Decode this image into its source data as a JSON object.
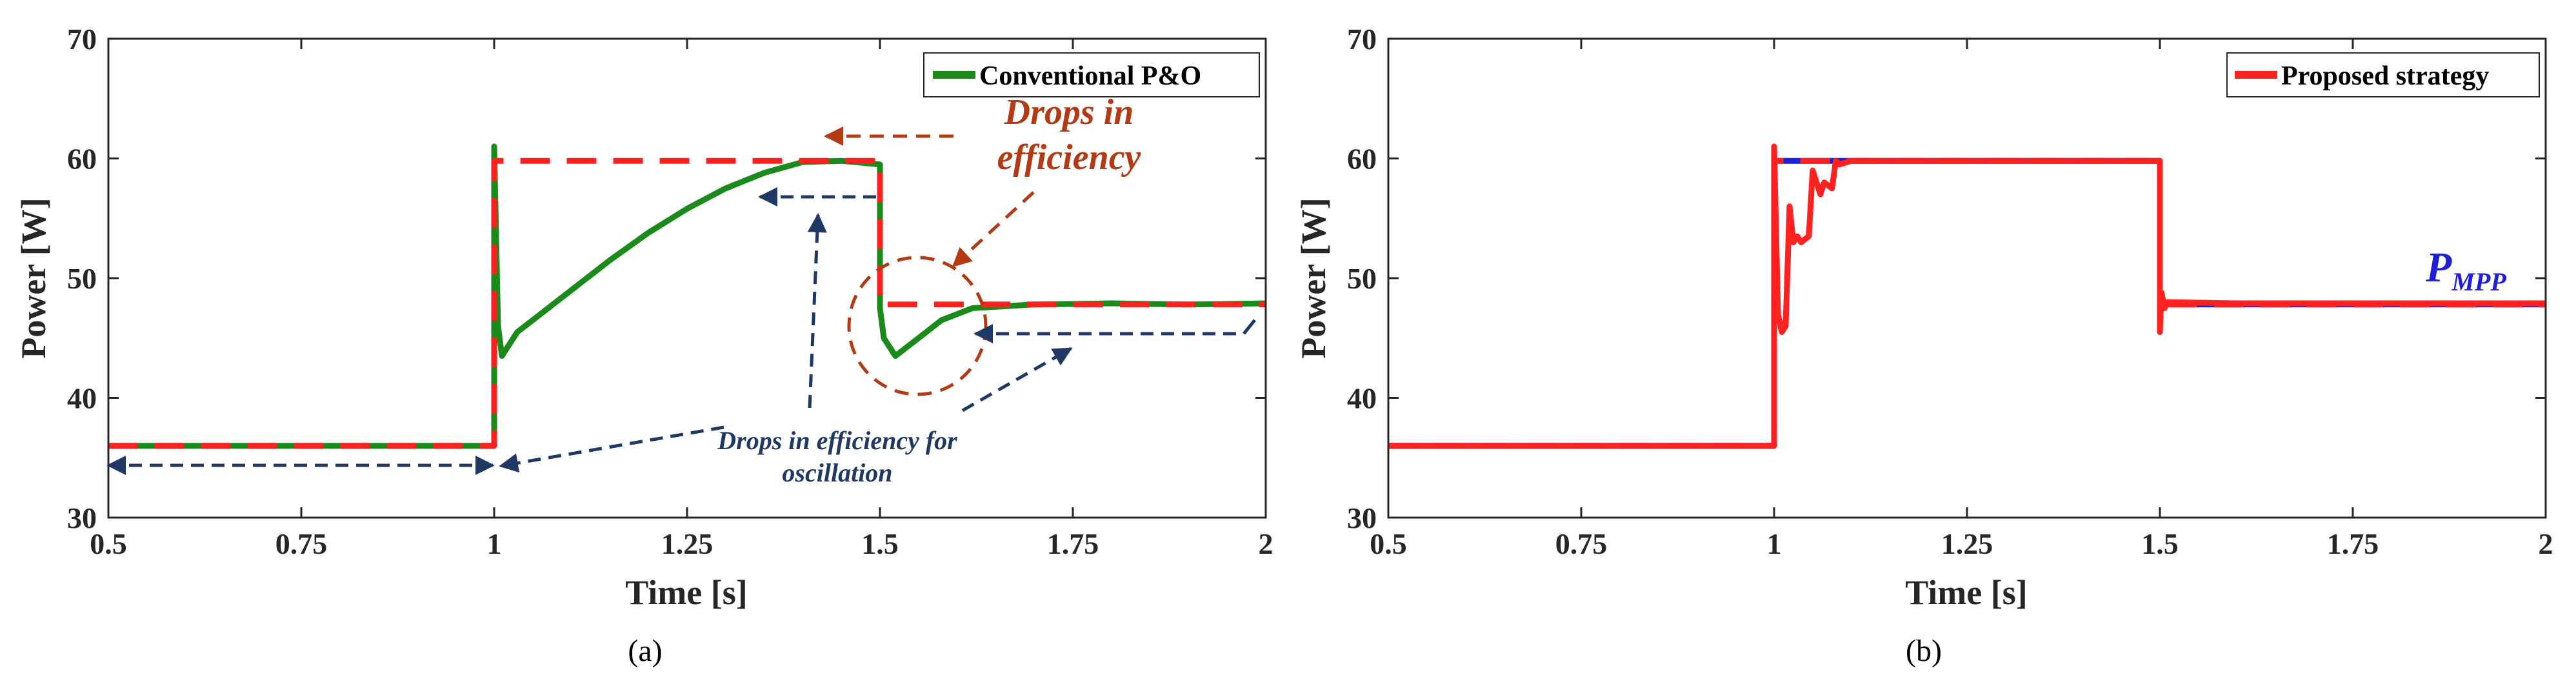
{
  "colors": {
    "conventional": "#1a8a1a",
    "proposed": "#ff2020",
    "reference_red": "#ff2020",
    "reference_blue": "#1f1fe0",
    "annotation_red": "#b23a14",
    "annotation_blue": "#1f3864"
  },
  "chart_data": [
    {
      "type": "line",
      "caption": "(a)",
      "xlabel": "Time [s]",
      "ylabel": "Power [W]",
      "xlim": [
        0.5,
        2
      ],
      "ylim": [
        30,
        70
      ],
      "xticks": [
        0.5,
        0.75,
        1,
        1.25,
        1.5,
        1.75,
        2
      ],
      "xtick_labels": [
        "0.5",
        "0.75",
        "1",
        "1.25",
        "1.5",
        "1.75",
        "2"
      ],
      "yticks": [
        30,
        40,
        50,
        60,
        70
      ],
      "ytick_labels": [
        "30",
        "40",
        "50",
        "60",
        "70"
      ],
      "legend": [
        "Conventional P&O"
      ],
      "legend_position": "top-right",
      "series": [
        {
          "name": "P_MPP reference",
          "style": "dashed-red",
          "in_legend": false,
          "x": [
            0.5,
            1.0,
            1.0,
            1.5,
            1.5,
            2.0
          ],
          "y": [
            36,
            36,
            59.8,
            59.8,
            47.8,
            47.8
          ]
        },
        {
          "name": "Conventional P&O",
          "style": "solid-green",
          "in_legend": true,
          "x": [
            0.5,
            1.0,
            1.0,
            1.005,
            1.01,
            1.02,
            1.03,
            1.06,
            1.1,
            1.15,
            1.2,
            1.25,
            1.3,
            1.35,
            1.4,
            1.45,
            1.5,
            1.5,
            1.505,
            1.52,
            1.55,
            1.58,
            1.62,
            1.7,
            1.8,
            1.9,
            2.0
          ],
          "y": [
            36,
            36,
            61,
            46,
            43.5,
            44.5,
            45.5,
            47,
            49,
            51.5,
            53.8,
            55.8,
            57.5,
            58.8,
            59.7,
            59.8,
            59.5,
            47.5,
            45,
            43.5,
            45,
            46.5,
            47.5,
            47.8,
            47.9,
            47.8,
            47.9
          ]
        }
      ],
      "annotations": {
        "drops_in": "Drops in",
        "efficiency": "efficiency",
        "osc_line1": "Drops in efficiency for",
        "osc_line2": "oscillation"
      }
    },
    {
      "type": "line",
      "caption": "(b)",
      "xlabel": "Time [s]",
      "ylabel": "Power [W]",
      "xlim": [
        0.5,
        2
      ],
      "ylim": [
        30,
        70
      ],
      "xticks": [
        0.5,
        0.75,
        1,
        1.25,
        1.5,
        1.75,
        2
      ],
      "xtick_labels": [
        "0.5",
        "0.75",
        "1",
        "1.25",
        "1.5",
        "1.75",
        "2"
      ],
      "yticks": [
        30,
        40,
        50,
        60,
        70
      ],
      "ytick_labels": [
        "30",
        "40",
        "50",
        "60",
        "70"
      ],
      "legend": [
        "Proposed strategy"
      ],
      "legend_position": "top-right",
      "series": [
        {
          "name": "P_MPP",
          "style": "dashed-blue",
          "in_legend": false,
          "x": [
            0.5,
            1.0,
            1.0,
            1.5,
            1.5,
            2.0
          ],
          "y": [
            36,
            36,
            59.8,
            59.8,
            47.8,
            47.8
          ]
        },
        {
          "name": "Proposed strategy",
          "style": "solid-red",
          "in_legend": true,
          "x": [
            0.5,
            1.0,
            1.0,
            1.005,
            1.01,
            1.015,
            1.02,
            1.025,
            1.03,
            1.035,
            1.045,
            1.05,
            1.06,
            1.065,
            1.075,
            1.08,
            1.085,
            1.1,
            1.2,
            1.3,
            1.4,
            1.5,
            1.5,
            1.502,
            1.506,
            1.51,
            1.6,
            1.8,
            2.0
          ],
          "y": [
            36,
            36,
            61,
            47,
            45.5,
            46,
            56,
            53,
            53.5,
            53,
            53.5,
            59,
            57,
            58,
            57.5,
            59.8,
            59.5,
            59.8,
            59.8,
            59.8,
            59.8,
            59.8,
            45.5,
            48.8,
            47.5,
            48,
            47.9,
            47.9,
            47.9
          ]
        }
      ],
      "annotations": {
        "pmpp_main": "P",
        "pmpp_sub": "MPP"
      }
    }
  ]
}
